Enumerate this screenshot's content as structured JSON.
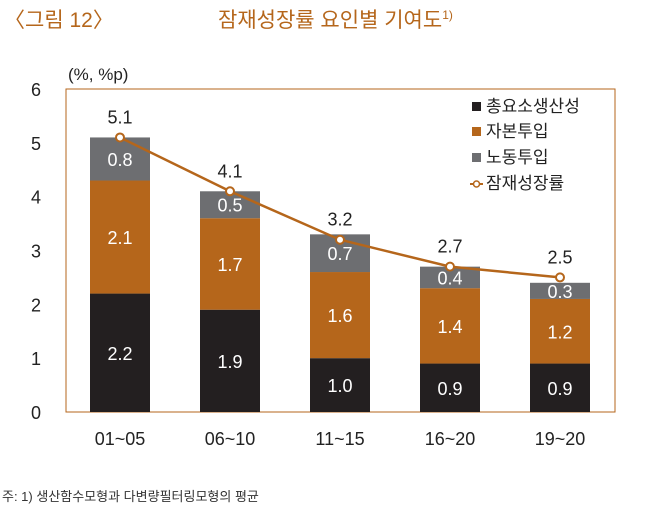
{
  "figure_label": "〈그림 12〉",
  "title": "잠재성장률 요인별 기여도",
  "title_sup": "1)",
  "note": "주: 1) 생산함수모형과 다변량필터링모형의 평균",
  "colors": {
    "tfp": "#231f20",
    "capital": "#b5661b",
    "labor": "#6d6e71",
    "line": "#b5661b",
    "title": "#b5661b"
  },
  "chart_data": {
    "type": "bar",
    "stacked": true,
    "title": "잠재성장률 요인별 기여도",
    "ylabel": "(%, %p)",
    "ylim": [
      0,
      6
    ],
    "yticks": [
      "0",
      "1",
      "2",
      "3",
      "4",
      "5",
      "6"
    ],
    "categories": [
      "01~05",
      "06~10",
      "11~15",
      "16~20",
      "19~20"
    ],
    "series": [
      {
        "name": "총요소생산성",
        "values": [
          2.2,
          1.9,
          1.0,
          0.9,
          0.9
        ],
        "labels": [
          "2.2",
          "1.9",
          "1.0",
          "0.9",
          "0.9"
        ]
      },
      {
        "name": "자본투입",
        "values": [
          2.1,
          1.7,
          1.6,
          1.4,
          1.2
        ],
        "labels": [
          "2.1",
          "1.7",
          "1.6",
          "1.4",
          "1.2"
        ]
      },
      {
        "name": "노동투입",
        "values": [
          0.8,
          0.5,
          0.7,
          0.4,
          0.3
        ],
        "labels": [
          "0.8",
          "0.5",
          "0.7",
          "0.4",
          "0.3"
        ]
      }
    ],
    "line": {
      "name": "잠재성장률",
      "values": [
        5.1,
        4.1,
        3.2,
        2.7,
        2.5
      ],
      "labels": [
        "5.1",
        "4.1",
        "3.2",
        "2.7",
        "2.5"
      ]
    },
    "legend_position": "top-right",
    "grid": false
  }
}
